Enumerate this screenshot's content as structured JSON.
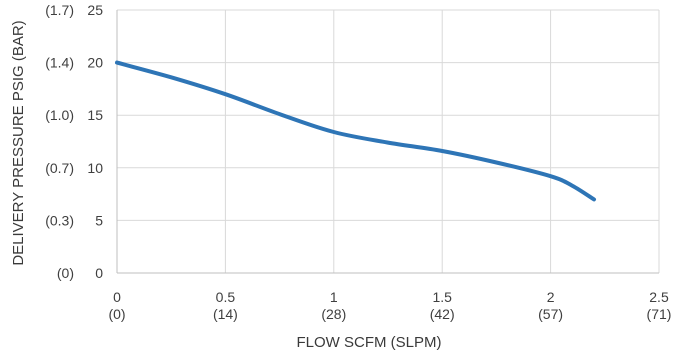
{
  "chart_data": {
    "type": "line",
    "title": "",
    "xlabel": "FLOW SCFM (SLPM)",
    "ylabel": "DELIVERY PRESSURE PSIG (BAR)",
    "xlim": [
      0,
      2.5
    ],
    "ylim": [
      0,
      25
    ],
    "grid": true,
    "colors": {
      "line": "#2e75b6",
      "grid": "#d9d9d9",
      "axis": "#bfbfbf"
    },
    "x_ticks": [
      {
        "value": 0,
        "primary": "0",
        "secondary": "(0)"
      },
      {
        "value": 0.5,
        "primary": "0.5",
        "secondary": "(14)"
      },
      {
        "value": 1,
        "primary": "1",
        "secondary": "(28)"
      },
      {
        "value": 1.5,
        "primary": "1.5",
        "secondary": "(42)"
      },
      {
        "value": 2,
        "primary": "2",
        "secondary": "(57)"
      },
      {
        "value": 2.5,
        "primary": "2.5",
        "secondary": "(71)"
      }
    ],
    "y_ticks": [
      {
        "value": 0,
        "primary": "0",
        "secondary": "(0)"
      },
      {
        "value": 5,
        "primary": "5",
        "secondary": "(0.3)"
      },
      {
        "value": 10,
        "primary": "10",
        "secondary": "(0.7)"
      },
      {
        "value": 15,
        "primary": "15",
        "secondary": "(1.0)"
      },
      {
        "value": 20,
        "primary": "20",
        "secondary": "(1.4)"
      },
      {
        "value": 25,
        "primary": "25",
        "secondary": "(1.7)"
      }
    ],
    "series": [
      {
        "x": [
          0,
          0.25,
          0.5,
          0.75,
          1.0,
          1.25,
          1.5,
          1.75,
          2.0,
          2.1,
          2.2
        ],
        "y": [
          20,
          18.6,
          17.0,
          15.1,
          13.4,
          12.4,
          11.6,
          10.5,
          9.2,
          8.3,
          7.0
        ]
      }
    ]
  }
}
